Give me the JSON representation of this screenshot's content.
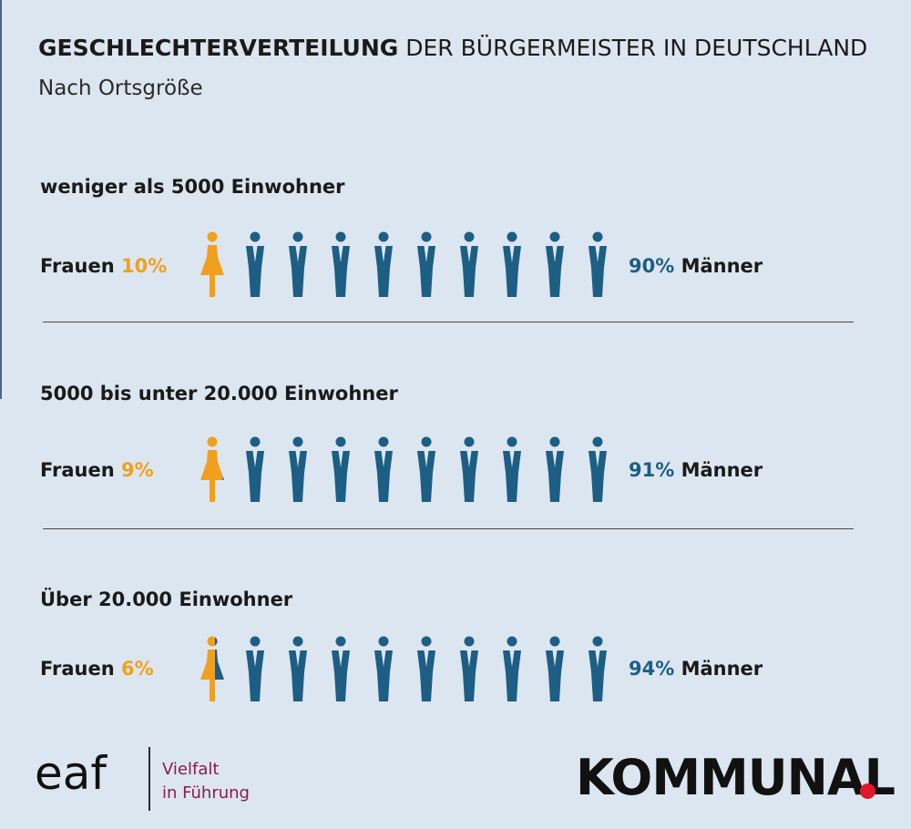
{
  "title": {
    "bold": "GESCHLECHTERVERTEILUNG",
    "rest": " DER BÜRGERMEISTER IN DEUTSCHLAND"
  },
  "subtitle": "Nach Ortsgröße",
  "colors": {
    "women": "#f0a01e",
    "men": "#1d5e84",
    "background": "#dce6f0",
    "brand_dot": "#e0182d",
    "eaf_tag": "#8b1a4a"
  },
  "labels": {
    "women": "Frauen",
    "men": "Männer"
  },
  "chart_data": {
    "type": "pictogram",
    "icons_per_row": 10,
    "rows": [
      {
        "category": "weniger als 5000 Einwohner",
        "women_pct": 10,
        "men_pct": 90,
        "women_label": "10%",
        "men_label": "90%"
      },
      {
        "category": "5000 bis unter 20.000 Einwohner",
        "women_pct": 9,
        "men_pct": 91,
        "women_label": "9%",
        "men_label": "91%"
      },
      {
        "category": "Über 20.000 Einwohner",
        "women_pct": 6,
        "men_pct": 94,
        "women_label": "6%",
        "men_label": "94%"
      }
    ]
  },
  "footer": {
    "eaf_logo_text": "eaf",
    "eaf_tagline_1": "Vielfalt",
    "eaf_tagline_2": "in Führung",
    "brand": "KOMMUNAL"
  }
}
